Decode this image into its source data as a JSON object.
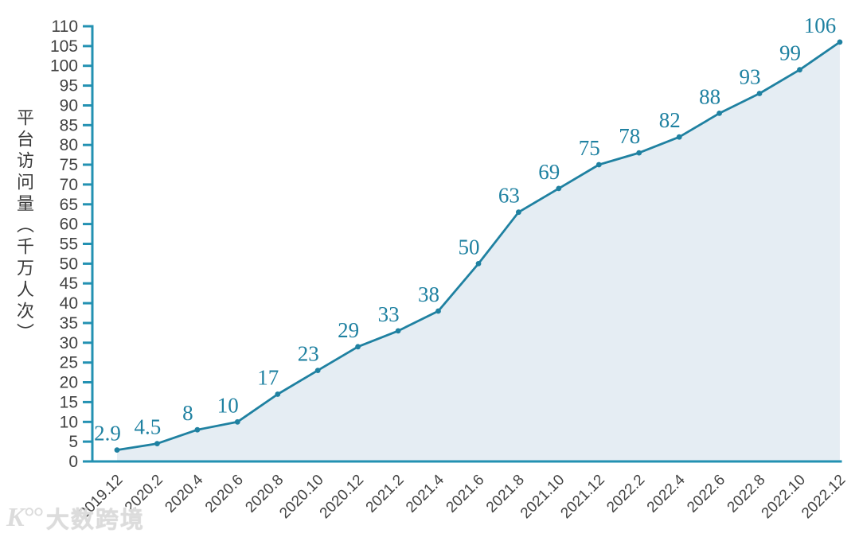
{
  "chart_data": {
    "type": "area",
    "title": "",
    "x": [
      "2019.12",
      "2020.2",
      "2020.4",
      "2020.6",
      "2020.8",
      "2020.10",
      "2020.12",
      "2021.2",
      "2021.4",
      "2021.6",
      "2021.8",
      "2021.10",
      "2021.12",
      "2022.2",
      "2022.4",
      "2022.6",
      "2022.8",
      "2022.10",
      "2022.12"
    ],
    "values": [
      2.9,
      4.5,
      8,
      10,
      17,
      23,
      29,
      33,
      38,
      50,
      63,
      69,
      75,
      78,
      82,
      88,
      93,
      99,
      106
    ],
    "data_labels": [
      "2.9",
      "4.5",
      "8",
      "10",
      "17",
      "23",
      "29",
      "33",
      "38",
      "50",
      "63",
      "69",
      "75",
      "78",
      "82",
      "88",
      "93",
      "99",
      "106"
    ],
    "xlabel": "",
    "ylabel": "平台访问量（千万人次）",
    "ylim": [
      0,
      110
    ],
    "ytick_step": 5,
    "grid": false,
    "legend": false,
    "markers": true,
    "colors": {
      "line": "#1f81a1",
      "marker": "#1f81a1",
      "area_fill": "#e5edf3",
      "axis": "#2391b2",
      "tick_label": "#434343",
      "data_label": "#1f81a1",
      "background": "#ffffff"
    }
  },
  "icons": {
    "watermark_logo": "K°°"
  },
  "watermark": {
    "text": "大数跨境"
  }
}
